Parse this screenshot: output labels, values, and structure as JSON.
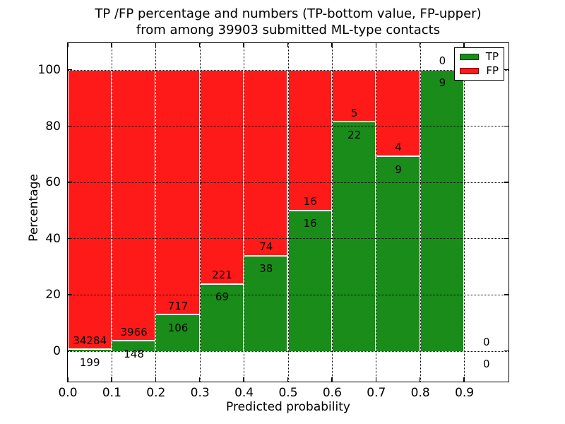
{
  "chart_data": {
    "type": "bar",
    "stacked": true,
    "title_line1": "TP /FP percentage and numbers (TP-bottom value, FP-upper)",
    "title_line2": "from among 39903 submitted ML-type contacts",
    "xlabel": "Predicted probability",
    "ylabel": "Percentage",
    "xlim": [
      0.0,
      1.0
    ],
    "ylim": [
      -10.8,
      109.6
    ],
    "bin_width": 0.1,
    "xtick_values": [
      0.0,
      0.1,
      0.2,
      0.3,
      0.4,
      0.5,
      0.6,
      0.7,
      0.8,
      0.9
    ],
    "xtick_labels": [
      "0.0",
      "0.1",
      "0.2",
      "0.3",
      "0.4",
      "0.5",
      "0.6",
      "0.7",
      "0.8",
      "0.9"
    ],
    "ytick_values": [
      0,
      20,
      40,
      60,
      80,
      100
    ],
    "ytick_labels": [
      "0",
      "20",
      "40",
      "60",
      "80",
      "100"
    ],
    "grid": "dotted",
    "categories": [
      "0.0-0.1",
      "0.1-0.2",
      "0.2-0.3",
      "0.3-0.4",
      "0.4-0.5",
      "0.5-0.6",
      "0.6-0.7",
      "0.7-0.8",
      "0.8-0.9",
      "0.9-1.0"
    ],
    "series": [
      {
        "name": "TP",
        "values": [
          199,
          148,
          106,
          69,
          38,
          16,
          22,
          9,
          9,
          0
        ]
      },
      {
        "name": "FP",
        "values": [
          34284,
          3966,
          717,
          221,
          74,
          16,
          5,
          4,
          0,
          0
        ]
      }
    ],
    "tp_percent": [
      0.58,
      3.6,
      12.88,
      23.79,
      33.93,
      50.0,
      81.48,
      69.23,
      100.0,
      0.0
    ],
    "colors": {
      "tp": "#1a8c1a",
      "fp": "#ff1a1a",
      "bar_edge": "#ffffff",
      "grid": "#000000"
    },
    "legend": {
      "position": "upper right",
      "entries": [
        {
          "label": "TP",
          "color": "#1a8c1a"
        },
        {
          "label": "FP",
          "color": "#ff1a1a"
        }
      ]
    }
  }
}
